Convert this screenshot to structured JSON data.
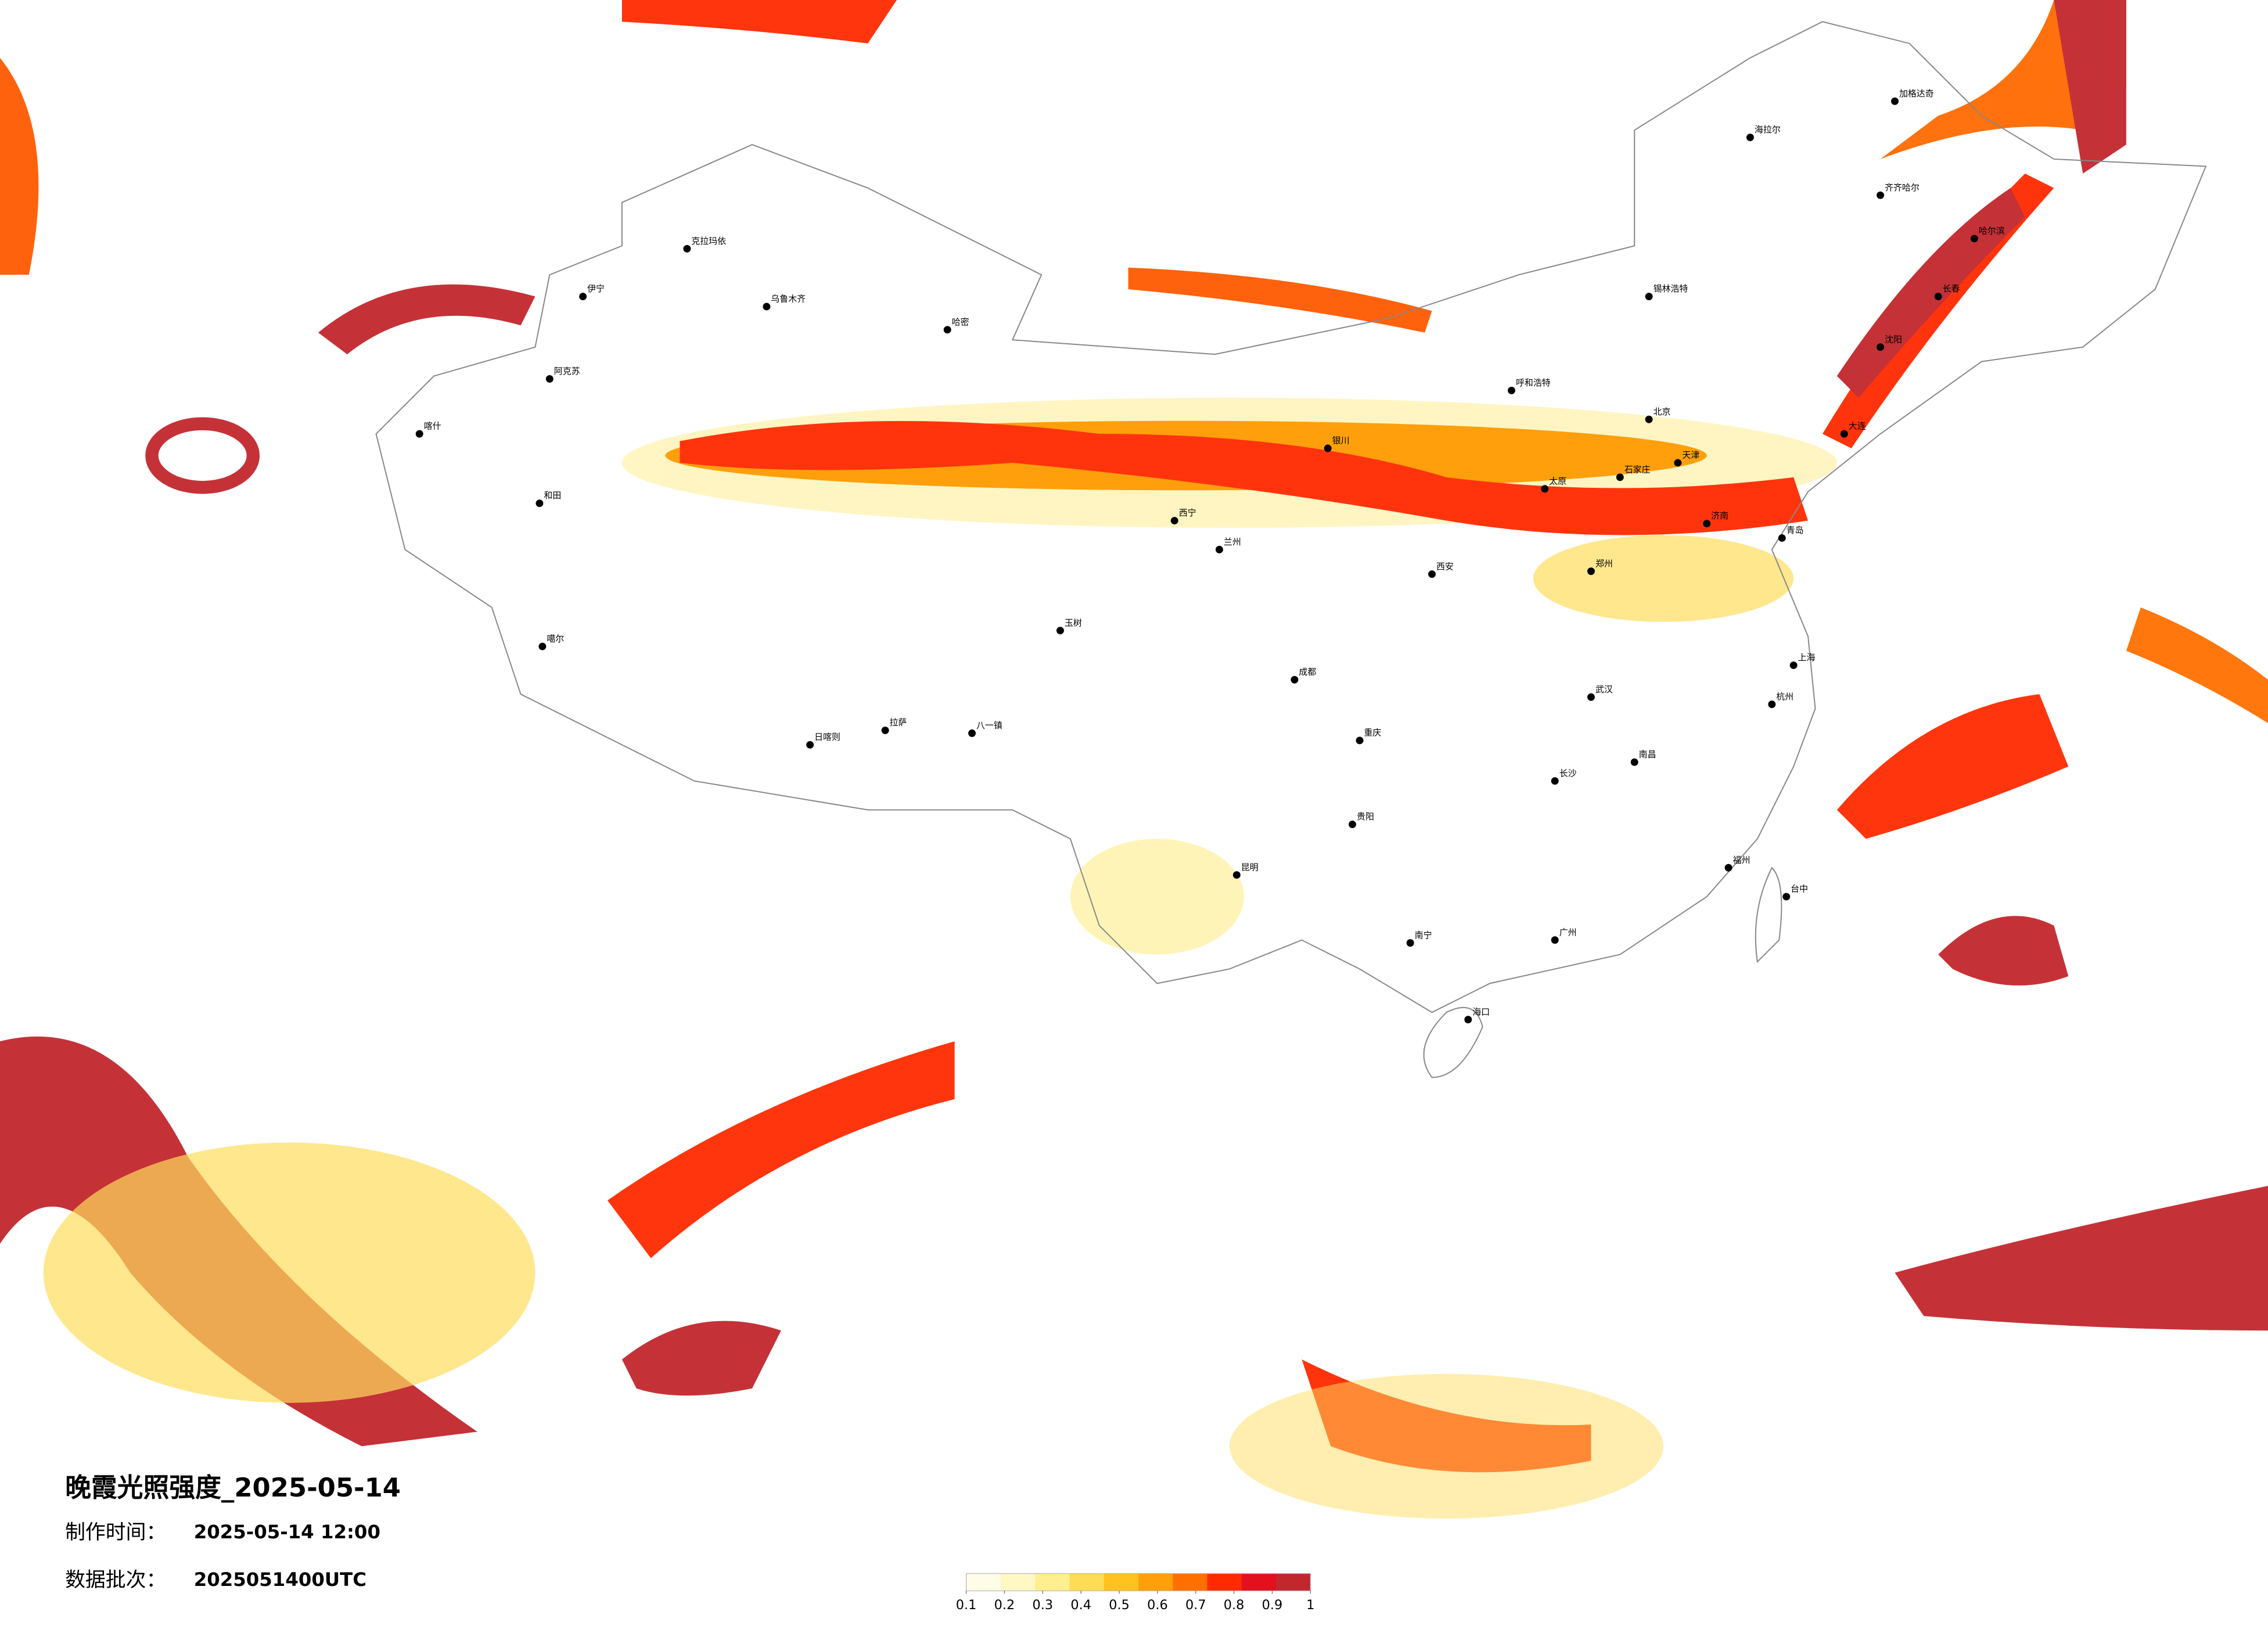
{
  "title": "晚霞光照强度_2025-05-14",
  "made_label": "制作时间：",
  "made_time": "2025-05-14 12:00",
  "batch_label": "数据批次：",
  "batch": "2025051400UTC",
  "legend": {
    "colors": [
      "#fffce8",
      "#fff7c4",
      "#ffef8f",
      "#ffdc55",
      "#ffc21e",
      "#ffa00a",
      "#ff7000",
      "#ff2a00",
      "#e3101e",
      "#c1272d"
    ],
    "ticks": [
      0.1,
      0.2,
      0.3,
      0.4,
      0.5,
      0.6,
      0.7,
      0.8,
      0.9,
      1
    ]
  },
  "cities": [
    "克拉玛依",
    "乌鲁木齐",
    "伊宁",
    "阿克苏",
    "喀什",
    "和田",
    "哈密",
    "噶尔",
    "日喀则",
    "拉萨",
    "八一镇",
    "玉树",
    "西宁",
    "兰州",
    "银川",
    "呼和浩特",
    "锡林浩特",
    "海拉尔",
    "加格达奇",
    "齐齐哈尔",
    "哈尔滨",
    "长春",
    "沈阳",
    "大连",
    "北京",
    "天津",
    "石家庄",
    "太原",
    "济南",
    "青岛",
    "郑州",
    "西安",
    "成都",
    "重庆",
    "武汉",
    "长沙",
    "南昌",
    "上海",
    "杭州",
    "福州",
    "台中",
    "广州",
    "南宁",
    "贵阳",
    "昆明",
    "海口"
  ]
}
